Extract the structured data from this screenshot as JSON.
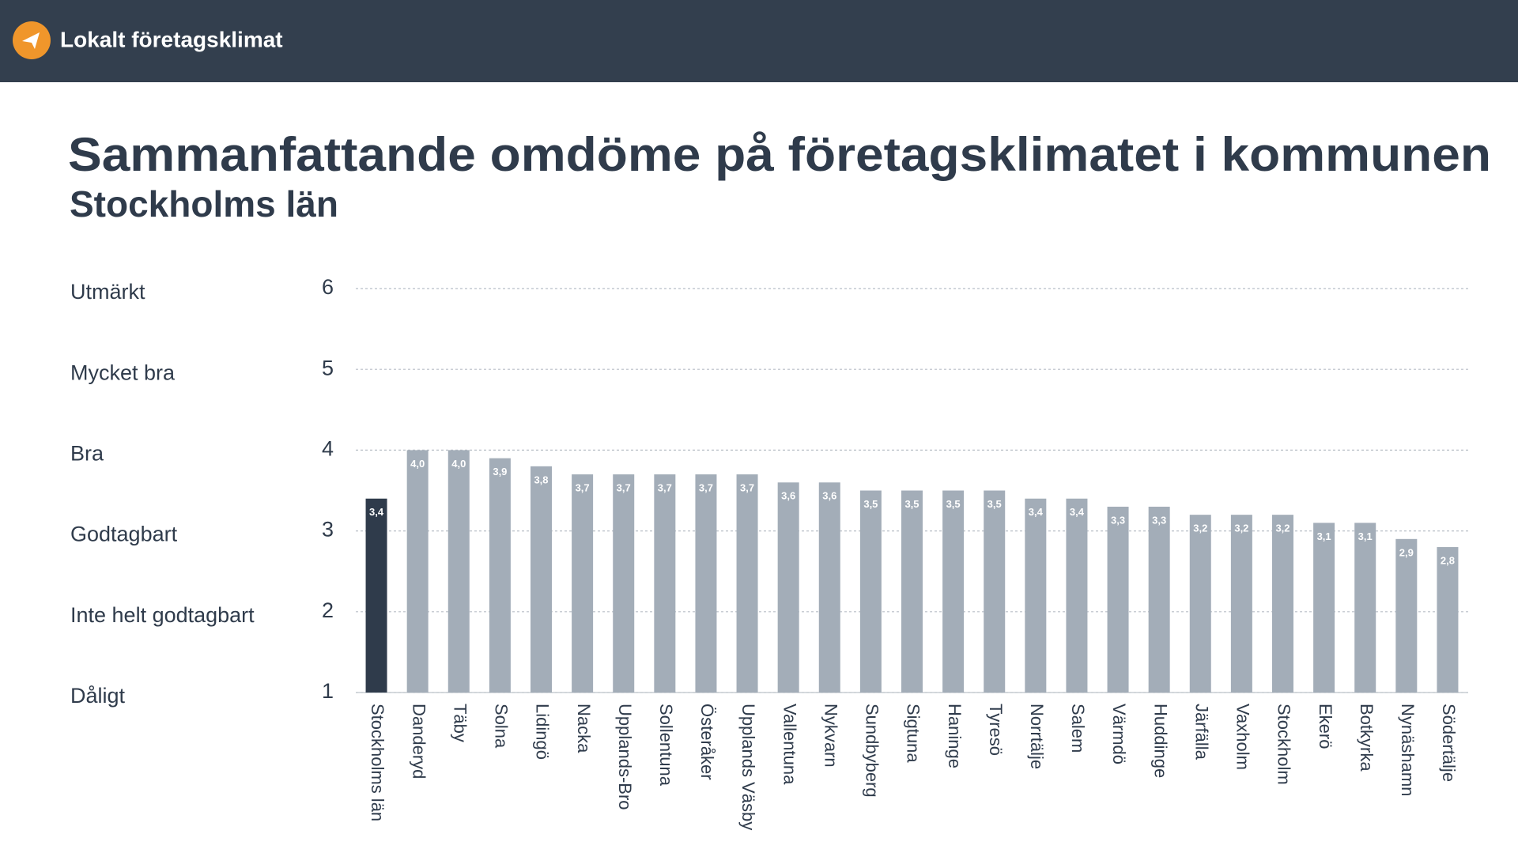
{
  "header": {
    "title": "Lokalt företagsklimat"
  },
  "chart_data": {
    "type": "bar",
    "title": "Sammanfattande omdöme på företagsklimatet i kommunen",
    "subtitle": "Stockholms län",
    "categories": [
      "Stockholms län",
      "Danderyd",
      "Täby",
      "Solna",
      "Lidingö",
      "Nacka",
      "Upplands-Bro",
      "Sollentuna",
      "Österåker",
      "Upplands Väsby",
      "Vallentuna",
      "Nykvarn",
      "Sundbyberg",
      "Sigtuna",
      "Haninge",
      "Tyresö",
      "Norrtälje",
      "Salem",
      "Värmdö",
      "Huddinge",
      "Järfälla",
      "Vaxholm",
      "Stockholm",
      "Ekerö",
      "Botkyrka",
      "Nynäshamn",
      "Södertälje"
    ],
    "values": [
      3.4,
      4.0,
      4.0,
      3.9,
      3.8,
      3.7,
      3.7,
      3.7,
      3.7,
      3.7,
      3.6,
      3.6,
      3.5,
      3.5,
      3.5,
      3.5,
      3.4,
      3.4,
      3.3,
      3.3,
      3.2,
      3.2,
      3.2,
      3.1,
      3.1,
      2.9,
      2.8
    ],
    "value_labels": [
      "3,4",
      "4,0",
      "4,0",
      "3,9",
      "3,8",
      "3,7",
      "3,7",
      "3,7",
      "3,7",
      "3,7",
      "3,6",
      "3,6",
      "3,5",
      "3,5",
      "3,5",
      "3,5",
      "3,4",
      "3,4",
      "3,3",
      "3,3",
      "3,2",
      "3,2",
      "3,2",
      "3,1",
      "3,1",
      "2,9",
      "2,8"
    ],
    "colors": [
      "#2f3b4b",
      "#a3adb8",
      "#a3adb8",
      "#a3adb8",
      "#a3adb8",
      "#a3adb8",
      "#a3adb8",
      "#a3adb8",
      "#a3adb8",
      "#a3adb8",
      "#a3adb8",
      "#a3adb8",
      "#a3adb8",
      "#a3adb8",
      "#a3adb8",
      "#a3adb8",
      "#a3adb8",
      "#a3adb8",
      "#a3adb8",
      "#a3adb8",
      "#a3adb8",
      "#a3adb8",
      "#a3adb8",
      "#a3adb8",
      "#a3adb8",
      "#a3adb8",
      "#a3adb8"
    ],
    "ylim": [
      1,
      6
    ],
    "yticks": [
      1,
      2,
      3,
      4,
      5,
      6
    ],
    "ytick_descriptions": [
      "Dåligt",
      "Inte helt godtagbart",
      "Godtagbart",
      "Bra",
      "Mycket bra",
      "Utmärkt"
    ],
    "grid": true
  }
}
